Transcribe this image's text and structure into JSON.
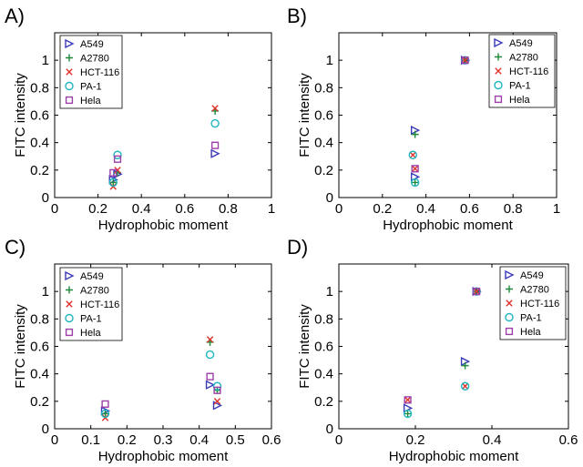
{
  "chart_data": [
    {
      "panel": "A)",
      "type": "scatter",
      "xlabel": "Hydrophobic moment",
      "ylabel": "FITC intensity",
      "xlim": [
        0,
        1
      ],
      "ylim": [
        0,
        1.2
      ],
      "xticks": [
        "0",
        "0.2",
        "0.4",
        "0.6",
        "0.8",
        "1"
      ],
      "yticks": [
        "0",
        "0.2",
        "0.4",
        "0.6",
        "0.8",
        "1"
      ],
      "xtick_values": [
        0,
        0.2,
        0.4,
        0.6,
        0.8,
        1
      ],
      "ytick_values": [
        0,
        0.2,
        0.4,
        0.6,
        0.8,
        1
      ],
      "legend_position": "top-left",
      "series": [
        {
          "name": "A549",
          "x": [
            0.27,
            0.29,
            0.74
          ],
          "y": [
            0.13,
            0.17,
            0.32
          ]
        },
        {
          "name": "A2780",
          "x": [
            0.27,
            0.29,
            0.74
          ],
          "y": [
            0.11,
            0.18,
            0.63
          ]
        },
        {
          "name": "HCT-116",
          "x": [
            0.27,
            0.29,
            0.74
          ],
          "y": [
            0.08,
            0.2,
            0.65
          ]
        },
        {
          "name": "PA-1",
          "x": [
            0.27,
            0.29,
            0.74
          ],
          "y": [
            0.11,
            0.31,
            0.54
          ]
        },
        {
          "name": "Hela",
          "x": [
            0.27,
            0.29,
            0.74
          ],
          "y": [
            0.18,
            0.28,
            0.38
          ]
        }
      ]
    },
    {
      "panel": "B)",
      "type": "scatter",
      "xlabel": "Hydrophobic moment",
      "ylabel": "FITC intensity",
      "xlim": [
        0,
        1
      ],
      "ylim": [
        0,
        1.2
      ],
      "xticks": [
        "0",
        "0.2",
        "0.4",
        "0.6",
        "0.8",
        "1"
      ],
      "yticks": [
        "0",
        "0.2",
        "0.4",
        "0.6",
        "0.8",
        "1"
      ],
      "xtick_values": [
        0,
        0.2,
        0.4,
        0.6,
        0.8,
        1
      ],
      "ytick_values": [
        0,
        0.2,
        0.4,
        0.6,
        0.8,
        1
      ],
      "legend_position": "top-right",
      "series": [
        {
          "name": "A549",
          "x": [
            0.35,
            0.35,
            0.58
          ],
          "y": [
            0.15,
            0.49,
            1.0
          ]
        },
        {
          "name": "A2780",
          "x": [
            0.35,
            0.35,
            0.58
          ],
          "y": [
            0.11,
            0.46,
            1.0
          ]
        },
        {
          "name": "HCT-116",
          "x": [
            0.34,
            0.35,
            0.58
          ],
          "y": [
            0.31,
            0.21,
            1.0
          ]
        },
        {
          "name": "PA-1",
          "x": [
            0.34,
            0.35,
            0.58
          ],
          "y": [
            0.31,
            0.11,
            1.0
          ]
        },
        {
          "name": "Hela",
          "x": [
            0.35,
            0.58
          ],
          "y": [
            0.21,
            1.0
          ]
        }
      ]
    },
    {
      "panel": "C)",
      "type": "scatter",
      "xlabel": "Hydrophobic moment",
      "ylabel": "FITC intensity",
      "xlim": [
        0,
        0.6
      ],
      "ylim": [
        0,
        1.2
      ],
      "xticks": [
        "0",
        "0.1",
        "0.2",
        "0.3",
        "0.4",
        "0.5",
        "0.6"
      ],
      "yticks": [
        "0",
        "0.2",
        "0.4",
        "0.6",
        "0.8",
        "1"
      ],
      "xtick_values": [
        0,
        0.1,
        0.2,
        0.3,
        0.4,
        0.5,
        0.6
      ],
      "ytick_values": [
        0,
        0.2,
        0.4,
        0.6,
        0.8,
        1
      ],
      "legend_position": "top-left",
      "series": [
        {
          "name": "A549",
          "x": [
            0.14,
            0.43,
            0.45
          ],
          "y": [
            0.13,
            0.32,
            0.17
          ]
        },
        {
          "name": "A2780",
          "x": [
            0.14,
            0.43,
            0.45
          ],
          "y": [
            0.11,
            0.63,
            0.28
          ]
        },
        {
          "name": "HCT-116",
          "x": [
            0.14,
            0.43,
            0.45
          ],
          "y": [
            0.08,
            0.65,
            0.2
          ]
        },
        {
          "name": "PA-1",
          "x": [
            0.14,
            0.43,
            0.45
          ],
          "y": [
            0.11,
            0.54,
            0.31
          ]
        },
        {
          "name": "Hela",
          "x": [
            0.14,
            0.43,
            0.45
          ],
          "y": [
            0.18,
            0.38,
            0.28
          ]
        }
      ]
    },
    {
      "panel": "D)",
      "type": "scatter",
      "xlabel": "Hydrophobic moment",
      "ylabel": "FITC intensity",
      "xlim": [
        0,
        0.6
      ],
      "ylim": [
        0,
        1.2
      ],
      "xticks": [
        "0",
        "0.2",
        "0.4",
        "0.6"
      ],
      "yticks": [
        "0",
        "0.2",
        "0.4",
        "0.6",
        "0.8",
        "1"
      ],
      "xtick_values": [
        0,
        0.2,
        0.4,
        0.6
      ],
      "ytick_values": [
        0,
        0.2,
        0.4,
        0.6,
        0.8,
        1
      ],
      "legend_position": "top-right",
      "series": [
        {
          "name": "A549",
          "x": [
            0.18,
            0.33,
            0.36
          ],
          "y": [
            0.15,
            0.49,
            1.0
          ]
        },
        {
          "name": "A2780",
          "x": [
            0.18,
            0.33,
            0.36
          ],
          "y": [
            0.11,
            0.46,
            1.0
          ]
        },
        {
          "name": "HCT-116",
          "x": [
            0.18,
            0.33,
            0.36
          ],
          "y": [
            0.21,
            0.31,
            1.0
          ]
        },
        {
          "name": "PA-1",
          "x": [
            0.18,
            0.33,
            0.36
          ],
          "y": [
            0.11,
            0.31,
            1.0
          ]
        },
        {
          "name": "Hela",
          "x": [
            0.18,
            0.36
          ],
          "y": [
            0.21,
            1.0
          ]
        }
      ]
    }
  ],
  "series_styles": {
    "A549": {
      "marker": "triangle-right",
      "color": "#3a3ab8"
    },
    "A2780": {
      "marker": "plus",
      "color": "#1f8a3a"
    },
    "HCT-116": {
      "marker": "x",
      "color": "#e0302a"
    },
    "PA-1": {
      "marker": "circle",
      "color": "#1fb5c0"
    },
    "Hela": {
      "marker": "square",
      "color": "#9c3fa8"
    }
  }
}
